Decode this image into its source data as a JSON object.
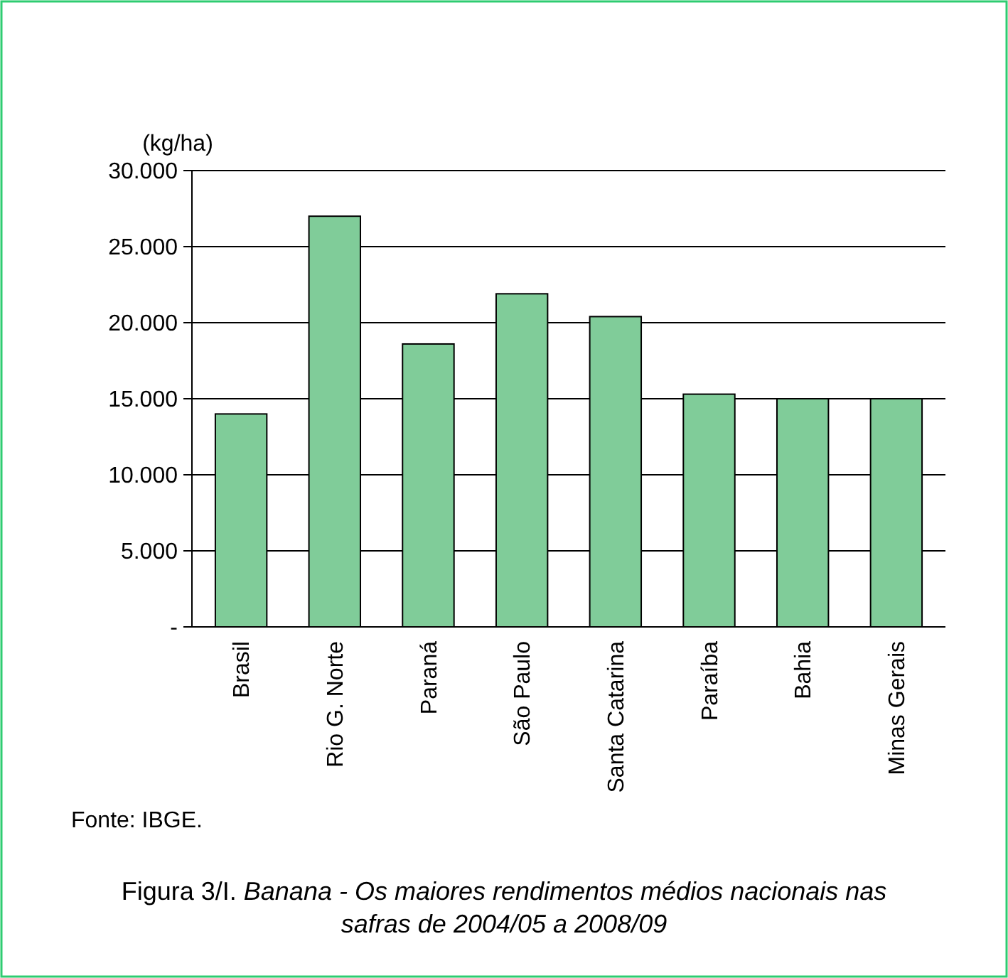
{
  "chart_data": {
    "type": "bar",
    "title": "Figura 3/I.",
    "subtitle": "Banana - Os maiores rendimentos médios nacionais nas safras de 2004/05 a 2008/09",
    "ylabel": "(kg/ha)",
    "categories": [
      "Brasil",
      "Rio G. Norte",
      "Paraná",
      "São Paulo",
      "Santa Catarina",
      "Paraíba",
      "Bahia",
      "Minas Gerais"
    ],
    "values": [
      14000,
      27000,
      18600,
      21900,
      20400,
      15300,
      15000,
      15000
    ],
    "color": "#80cc99",
    "ylim": [
      0,
      30000
    ],
    "yticks": [
      {
        "value": 0,
        "label": "-"
      },
      {
        "value": 5000,
        "label": "5.000"
      },
      {
        "value": 10000,
        "label": "10.000"
      },
      {
        "value": 15000,
        "label": "15.000"
      },
      {
        "value": 20000,
        "label": "20.000"
      },
      {
        "value": 25000,
        "label": "25.000"
      },
      {
        "value": 30000,
        "label": "30.000"
      }
    ],
    "grid": "y",
    "annotations": [
      "Fonte: IBGE."
    ]
  }
}
